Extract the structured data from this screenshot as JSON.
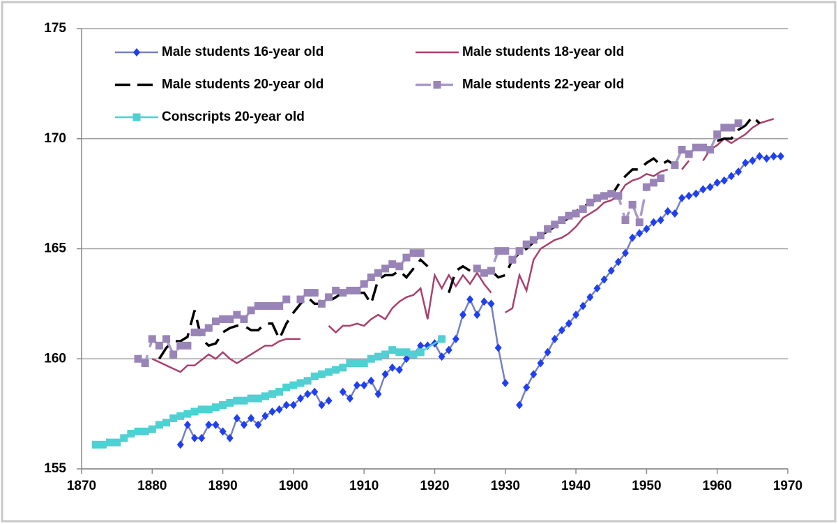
{
  "chart_data": {
    "type": "line",
    "xlim": [
      1870,
      1970
    ],
    "xticks": [
      1870,
      1880,
      1890,
      1900,
      1910,
      1920,
      1930,
      1940,
      1950,
      1960,
      1970
    ],
    "ylim": [
      155,
      175
    ],
    "yticks": [
      155,
      160,
      165,
      170,
      175
    ],
    "grid": true,
    "series": [
      {
        "name": "Male students 16-year old",
        "color": "#1f3ff2",
        "line_color": "#7480c0",
        "marker": "diamond",
        "dash": false,
        "x": [
          1884,
          1885,
          1886,
          1887,
          1888,
          1889,
          1890,
          1891,
          1892,
          1893,
          1894,
          1895,
          1896,
          1897,
          1898,
          1899,
          1900,
          1901,
          1902,
          1903,
          1904,
          1905,
          1906,
          1907,
          1908,
          1909,
          1910,
          1911,
          1912,
          1913,
          1914,
          1915,
          1916,
          1917,
          1918,
          1919,
          1920,
          1921,
          1922,
          1923,
          1924,
          1925,
          1926,
          1927,
          1928,
          1929,
          1930,
          1931,
          1932,
          1933,
          1934,
          1935,
          1936,
          1937,
          1938,
          1939,
          1940,
          1941,
          1942,
          1943,
          1944,
          1945,
          1946,
          1947,
          1948,
          1949,
          1950,
          1951,
          1952,
          1953,
          1954,
          1955,
          1956,
          1957,
          1958,
          1959,
          1960,
          1961,
          1962,
          1963,
          1964,
          1965,
          1966,
          1967,
          1968,
          1969
        ],
        "values": [
          156.1,
          157.0,
          156.4,
          156.4,
          157.0,
          157.0,
          156.7,
          156.4,
          157.3,
          157.0,
          157.3,
          157.0,
          157.4,
          157.6,
          157.7,
          157.9,
          157.9,
          158.2,
          158.4,
          158.5,
          157.9,
          158.1,
          null,
          158.5,
          158.2,
          158.8,
          158.8,
          159.0,
          158.4,
          159.3,
          159.6,
          159.5,
          160.0,
          160.2,
          160.6,
          160.6,
          160.7,
          160.1,
          160.4,
          160.9,
          162.0,
          162.7,
          162.0,
          162.6,
          162.5,
          160.5,
          158.9,
          null,
          157.9,
          158.7,
          159.3,
          159.8,
          160.3,
          160.9,
          161.3,
          161.6,
          162.0,
          162.4,
          162.8,
          163.2,
          163.6,
          164.0,
          164.4,
          164.8,
          165.5,
          165.7,
          165.9,
          166.2,
          166.3,
          166.7,
          166.6,
          167.3,
          167.4,
          167.5,
          167.7,
          167.8,
          168.0,
          168.1,
          168.3,
          168.5,
          168.9,
          169.0,
          169.2,
          169.1,
          169.2,
          169.2
        ]
      },
      {
        "name": "Male students 18-year old",
        "color": "#a8406e",
        "line_color": "#a8406e",
        "marker": null,
        "dash": false,
        "x": [
          1880,
          1882,
          1884,
          1885,
          1886,
          1888,
          1889,
          1890,
          1891,
          1892,
          1893,
          1894,
          1896,
          1897,
          1898,
          1899,
          1900,
          1901,
          1902,
          1903,
          1904,
          1905,
          1906,
          1907,
          1908,
          1909,
          1910,
          1911,
          1912,
          1913,
          1914,
          1915,
          1916,
          1917,
          1918,
          1919,
          1920,
          1921,
          1922,
          1923,
          1924,
          1925,
          1926,
          1927,
          1928,
          1929,
          1930,
          1931,
          1932,
          1933,
          1934,
          1935,
          1936,
          1937,
          1938,
          1939,
          1940,
          1941,
          1942,
          1943,
          1944,
          1945,
          1946,
          1947,
          1948,
          1949,
          1950,
          1951,
          1952,
          1953,
          1954,
          1955,
          1956,
          1957,
          1958,
          1959,
          1960,
          1961,
          1962,
          1963,
          1964,
          1965,
          1966,
          1968
        ],
        "values": [
          160.0,
          159.7,
          159.4,
          159.7,
          159.7,
          160.2,
          160.0,
          160.3,
          160.0,
          159.8,
          160.0,
          160.2,
          160.6,
          160.6,
          160.8,
          160.9,
          160.9,
          160.9,
          null,
          161.2,
          null,
          161.5,
          161.2,
          161.5,
          161.5,
          161.6,
          161.5,
          161.8,
          162.0,
          161.8,
          162.3,
          162.6,
          162.8,
          162.9,
          163.2,
          161.8,
          163.8,
          163.2,
          163.8,
          163.3,
          163.8,
          163.4,
          163.9,
          163.4,
          163.0,
          null,
          162.1,
          162.3,
          163.8,
          163.1,
          164.5,
          165.0,
          165.2,
          165.4,
          165.5,
          165.7,
          166.0,
          166.4,
          166.6,
          166.8,
          167.1,
          167.2,
          167.4,
          167.9,
          168.1,
          168.2,
          168.4,
          168.3,
          168.5,
          168.6,
          null,
          168.6,
          169.0,
          null,
          169.0,
          169.5,
          169.7,
          170.0,
          169.8,
          170.0,
          170.2,
          170.5,
          170.7,
          170.9
        ]
      },
      {
        "name": "Male students 20-year old",
        "color": "#000000",
        "line_color": "#000000",
        "marker": null,
        "dash": true,
        "x": [
          1881,
          1882,
          1883,
          1884,
          1885,
          1886,
          1887,
          1888,
          1889,
          1890,
          1891,
          1892,
          1893,
          1894,
          1895,
          1896,
          1897,
          1898,
          1899,
          1900,
          1901,
          1902,
          1903,
          1904,
          1905,
          1906,
          1907,
          1908,
          1909,
          1910,
          1911,
          1912,
          1913,
          1914,
          1915,
          1916,
          1917,
          1918,
          1919,
          1920,
          1922,
          1923,
          1924,
          1925,
          1927,
          1928,
          1929,
          1930,
          1931,
          1932,
          1933,
          1934,
          1935,
          1936,
          1937,
          1938,
          1939,
          1940,
          1941,
          1942,
          1943,
          1944,
          1945,
          1946,
          1947,
          1948,
          1949,
          1950,
          1951,
          1952,
          1953,
          1954,
          1955,
          1960,
          1961,
          1962,
          1963,
          1964,
          1965,
          1966
        ],
        "values": [
          160.0,
          160.5,
          160.8,
          160.8,
          161.0,
          162.2,
          160.9,
          160.6,
          160.7,
          161.2,
          161.4,
          161.5,
          161.5,
          161.3,
          161.3,
          161.6,
          161.6,
          160.9,
          161.6,
          162.1,
          162.5,
          162.8,
          162.5,
          162.5,
          162.6,
          162.8,
          163.0,
          163.0,
          163.0,
          163.0,
          162.5,
          163.6,
          163.8,
          163.8,
          164.0,
          163.7,
          164.1,
          164.5,
          164.2,
          null,
          163.0,
          164.0,
          164.2,
          164.0,
          null,
          164.0,
          163.7,
          163.8,
          164.5,
          164.8,
          165.0,
          165.3,
          165.6,
          165.8,
          166.0,
          166.2,
          166.4,
          166.7,
          166.9,
          167.1,
          167.2,
          167.3,
          167.4,
          167.9,
          168.3,
          168.6,
          168.6,
          168.9,
          169.1,
          168.8,
          169.0,
          168.8,
          null,
          169.9,
          170.0,
          170.0,
          170.4,
          170.6,
          171.0,
          170.7
        ]
      },
      {
        "name": "Male students 22-year old",
        "color": "#9984b8",
        "line_color": "#a999cc",
        "marker": "square",
        "dash": true,
        "x": [
          1878,
          1879,
          1880,
          1881,
          1882,
          1883,
          1884,
          1885,
          1886,
          1887,
          1888,
          1889,
          1890,
          1891,
          1892,
          1893,
          1894,
          1895,
          1896,
          1897,
          1898,
          1899,
          1900,
          1901,
          1902,
          1903,
          1904,
          1905,
          1906,
          1907,
          1908,
          1909,
          1910,
          1911,
          1912,
          1913,
          1914,
          1915,
          1916,
          1917,
          1918,
          1922,
          1926,
          1927,
          1928,
          1929,
          1930,
          1931,
          1932,
          1933,
          1934,
          1935,
          1936,
          1937,
          1938,
          1939,
          1940,
          1941,
          1942,
          1943,
          1944,
          1945,
          1946,
          1947,
          1948,
          1949,
          1950,
          1951,
          1952,
          1953,
          1954,
          1955,
          1956,
          1957,
          1958,
          1959,
          1960,
          1961,
          1962,
          1963
        ],
        "values": [
          160.0,
          159.8,
          160.9,
          160.6,
          160.9,
          160.2,
          160.6,
          160.6,
          161.2,
          161.2,
          161.4,
          161.7,
          161.8,
          161.8,
          162.0,
          161.8,
          162.2,
          162.4,
          162.4,
          162.4,
          162.4,
          162.7,
          null,
          162.7,
          163.0,
          163.0,
          162.5,
          162.8,
          163.1,
          163.0,
          163.1,
          163.1,
          163.4,
          163.7,
          163.9,
          164.1,
          164.3,
          164.2,
          164.6,
          164.8,
          164.8,
          null,
          164.1,
          163.9,
          164.0,
          164.9,
          164.9,
          164.5,
          164.9,
          165.2,
          165.4,
          165.6,
          165.9,
          166.1,
          166.3,
          166.5,
          166.6,
          166.8,
          167.1,
          167.3,
          167.4,
          167.5,
          167.4,
          166.3,
          167.0,
          166.2,
          167.8,
          168.0,
          168.2,
          null,
          168.8,
          169.5,
          169.3,
          169.6,
          169.6,
          169.5,
          170.2,
          170.5,
          170.5,
          170.7
        ]
      },
      {
        "name": "Conscripts 20-year old",
        "color": "#4fd0d2",
        "line_color": "#4fd0d2",
        "marker": "square",
        "dash": false,
        "x": [
          1872,
          1873,
          1874,
          1875,
          1876,
          1877,
          1878,
          1879,
          1880,
          1881,
          1882,
          1883,
          1884,
          1885,
          1886,
          1887,
          1888,
          1889,
          1890,
          1891,
          1892,
          1893,
          1894,
          1895,
          1896,
          1897,
          1898,
          1899,
          1900,
          1901,
          1902,
          1903,
          1904,
          1905,
          1906,
          1907,
          1908,
          1909,
          1910,
          1911,
          1912,
          1913,
          1914,
          1915,
          1916,
          1917,
          1918,
          1921
        ],
        "values": [
          156.1,
          156.1,
          156.2,
          156.2,
          156.4,
          156.6,
          156.7,
          156.7,
          156.8,
          157.0,
          157.1,
          157.3,
          157.4,
          157.5,
          157.6,
          157.7,
          157.7,
          157.8,
          157.9,
          158.0,
          158.1,
          158.1,
          158.2,
          158.2,
          158.3,
          158.4,
          158.5,
          158.7,
          158.8,
          158.9,
          159.0,
          159.2,
          159.3,
          159.4,
          159.5,
          159.6,
          159.8,
          159.8,
          159.8,
          160.0,
          160.1,
          160.2,
          160.4,
          160.3,
          160.3,
          160.2,
          160.3,
          160.9
        ]
      }
    ]
  }
}
